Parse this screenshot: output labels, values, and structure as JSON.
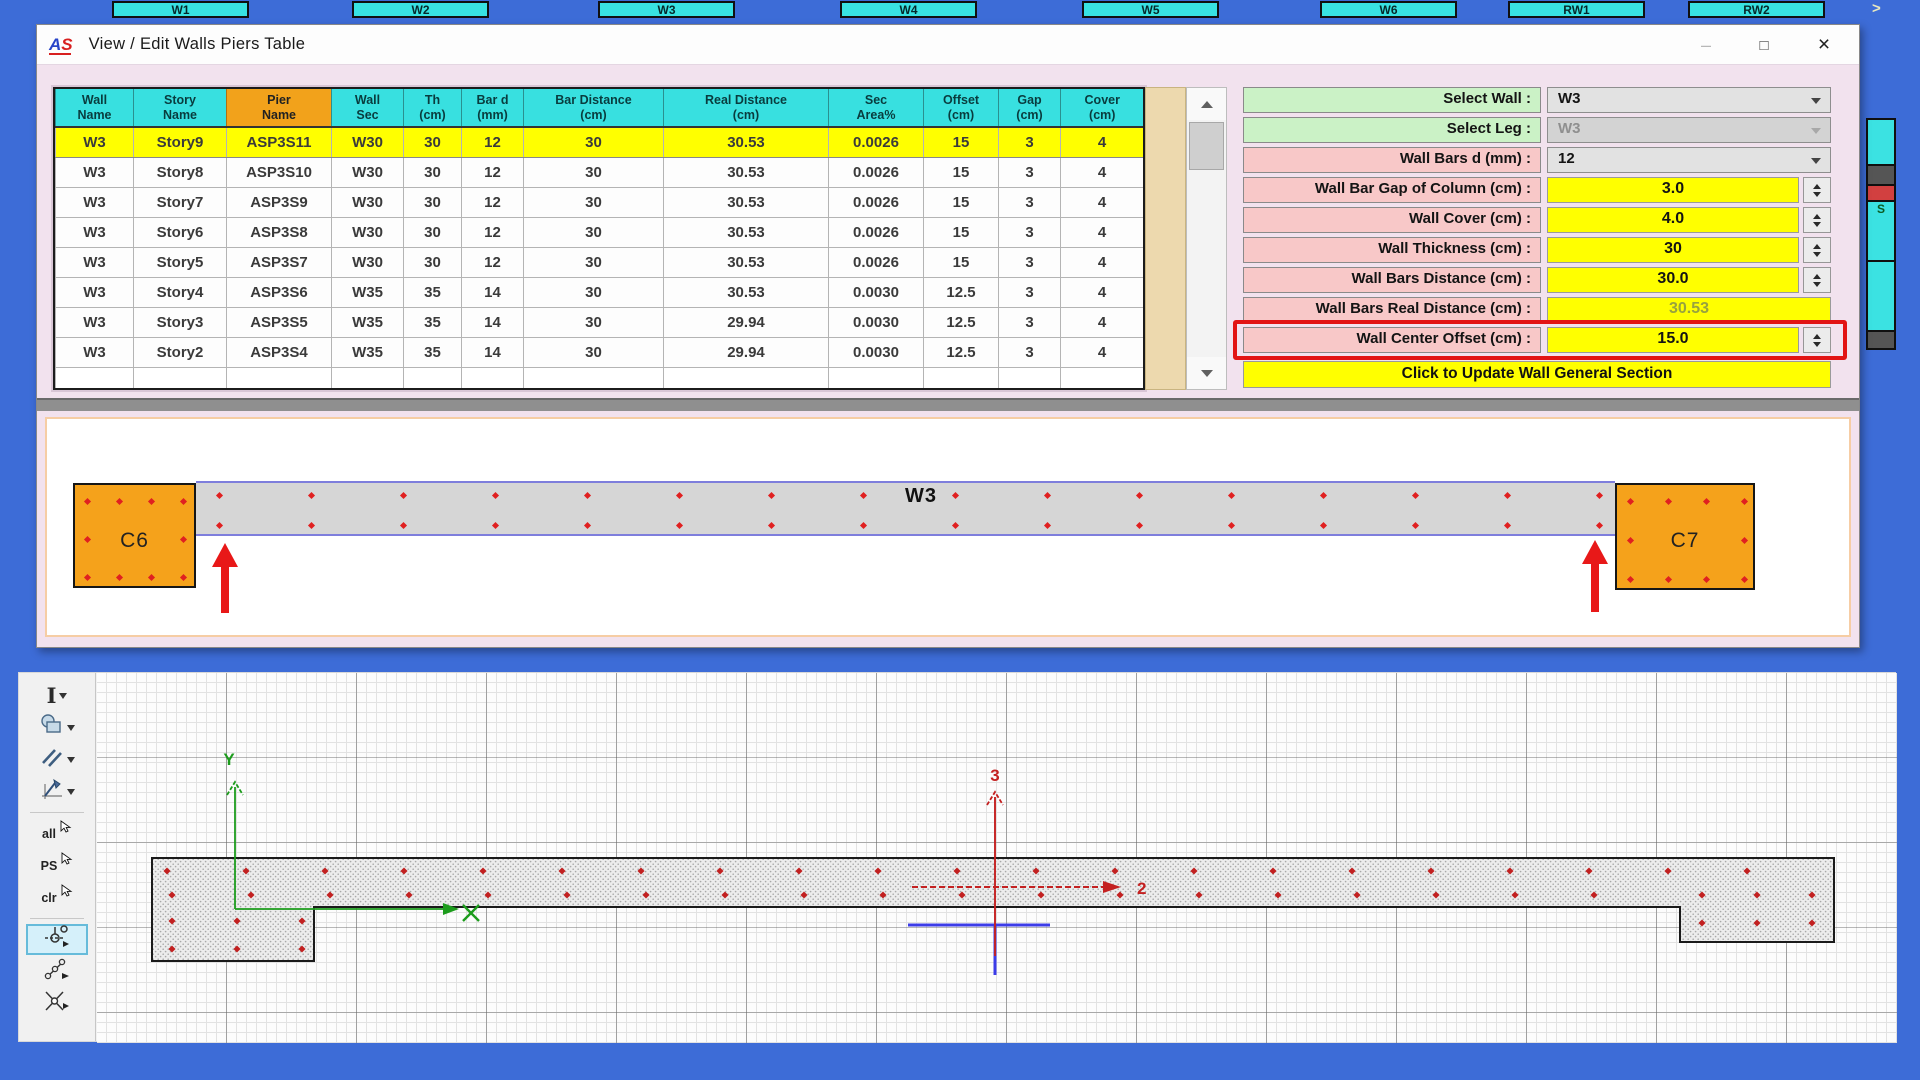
{
  "desktop": {
    "background_color": "#3D6CD7"
  },
  "background_app": {
    "top_cells": [
      "W1",
      "W2",
      "W3",
      "W4",
      "W5",
      "W6",
      "RW1",
      "RW2"
    ],
    "chevron": ">",
    "right_strip_label": "S"
  },
  "window": {
    "logo": "AS",
    "title": "View / Edit Walls Piers Table",
    "controls": {
      "minimize": "–",
      "maximize": "□",
      "close": "×"
    }
  },
  "table": {
    "headers": [
      "Wall\nName",
      "Story\nName",
      "Pier\nName",
      "Wall\nSec",
      "Th\n(cm)",
      "Bar d\n(mm)",
      "Bar Distance\n(cm)",
      "Real Distance\n(cm)",
      "Sec\nArea%",
      "Offset\n(cm)",
      "Gap\n(cm)",
      "Cover\n(cm)"
    ],
    "rows": [
      [
        "W3",
        "Story9",
        "ASP3S11",
        "W30",
        "30",
        "12",
        "30",
        "30.53",
        "0.0026",
        "15",
        "3",
        "4"
      ],
      [
        "W3",
        "Story8",
        "ASP3S10",
        "W30",
        "30",
        "12",
        "30",
        "30.53",
        "0.0026",
        "15",
        "3",
        "4"
      ],
      [
        "W3",
        "Story7",
        "ASP3S9",
        "W30",
        "30",
        "12",
        "30",
        "30.53",
        "0.0026",
        "15",
        "3",
        "4"
      ],
      [
        "W3",
        "Story6",
        "ASP3S8",
        "W30",
        "30",
        "12",
        "30",
        "30.53",
        "0.0026",
        "15",
        "3",
        "4"
      ],
      [
        "W3",
        "Story5",
        "ASP3S7",
        "W30",
        "30",
        "12",
        "30",
        "30.53",
        "0.0026",
        "15",
        "3",
        "4"
      ],
      [
        "W3",
        "Story4",
        "ASP3S6",
        "W35",
        "35",
        "14",
        "30",
        "30.53",
        "0.0030",
        "12.5",
        "3",
        "4"
      ],
      [
        "W3",
        "Story3",
        "ASP3S5",
        "W35",
        "35",
        "14",
        "30",
        "29.94",
        "0.0030",
        "12.5",
        "3",
        "4"
      ],
      [
        "W3",
        "Story2",
        "ASP3S4",
        "W35",
        "35",
        "14",
        "30",
        "29.94",
        "0.0030",
        "12.5",
        "3",
        "4"
      ]
    ],
    "highlighted_row_index": 0,
    "colors": {
      "header_cyan": "#38E0E0",
      "pier_header_orange": "#F2A21B",
      "highlight_yellow": "#FFFF00"
    }
  },
  "panel": {
    "fields": [
      {
        "label": "Select Wall :",
        "value": "W3",
        "type": "dropdown",
        "label_color": "green"
      },
      {
        "label": "Select Leg  :",
        "value": "W3",
        "type": "dropdown-disabled",
        "label_color": "green"
      },
      {
        "label": "Wall Bars d (mm) :",
        "value": "12",
        "type": "dropdown",
        "label_color": "pink"
      },
      {
        "label": "Wall Bar Gap of Column (cm) :",
        "value": "3.0",
        "type": "spinner",
        "label_color": "pink"
      },
      {
        "label": "Wall Cover (cm) :",
        "value": "4.0",
        "type": "spinner",
        "label_color": "pink"
      },
      {
        "label": "Wall Thickness (cm) :",
        "value": "30",
        "type": "spinner",
        "label_color": "pink"
      },
      {
        "label": "Wall Bars Distance (cm) :",
        "value": "30.0",
        "type": "spinner",
        "label_color": "pink"
      },
      {
        "label": "Wall Bars Real Distance (cm) :",
        "value": "30.53",
        "type": "readonly",
        "label_color": "pink"
      },
      {
        "label": "Wall Center Offset (cm) :",
        "value": "15.0",
        "type": "spinner",
        "label_color": "pink",
        "highlighted": true
      }
    ],
    "update_button": "Click to Update Wall General Section",
    "highlight_color": "#E21414"
  },
  "elevation": {
    "left_column": "C6",
    "wall_label": "W3",
    "right_column": "C7"
  },
  "cad": {
    "tools": [
      {
        "name": "text-tool",
        "icon": "text-icon",
        "dropdown": true
      },
      {
        "name": "shapes-tool",
        "icon": "shapes-icon",
        "dropdown": true
      },
      {
        "name": "parallel-lines-tool",
        "icon": "parallel-lines-icon",
        "dropdown": true
      },
      {
        "name": "axis-pen-tool",
        "icon": "axis-pen-icon",
        "dropdown": true
      },
      {
        "separator": true
      },
      {
        "name": "select-all-tool",
        "label": "all",
        "icon": "cursor-icon"
      },
      {
        "name": "select-ps-tool",
        "label": "PS",
        "icon": "cursor-icon"
      },
      {
        "name": "clear-selection-tool",
        "label": "clr",
        "icon": "cursor-icon"
      },
      {
        "separator": true
      },
      {
        "name": "snap-point-tool",
        "icon": "snap-point-icon",
        "selected": true
      },
      {
        "name": "snap-chain-tool",
        "icon": "snap-chain-icon"
      },
      {
        "name": "snap-intersection-tool",
        "icon": "snap-intersection-icon"
      }
    ],
    "axes": {
      "global_vertical": "Y",
      "local_vertical": "3",
      "local_horizontal": "2"
    }
  }
}
